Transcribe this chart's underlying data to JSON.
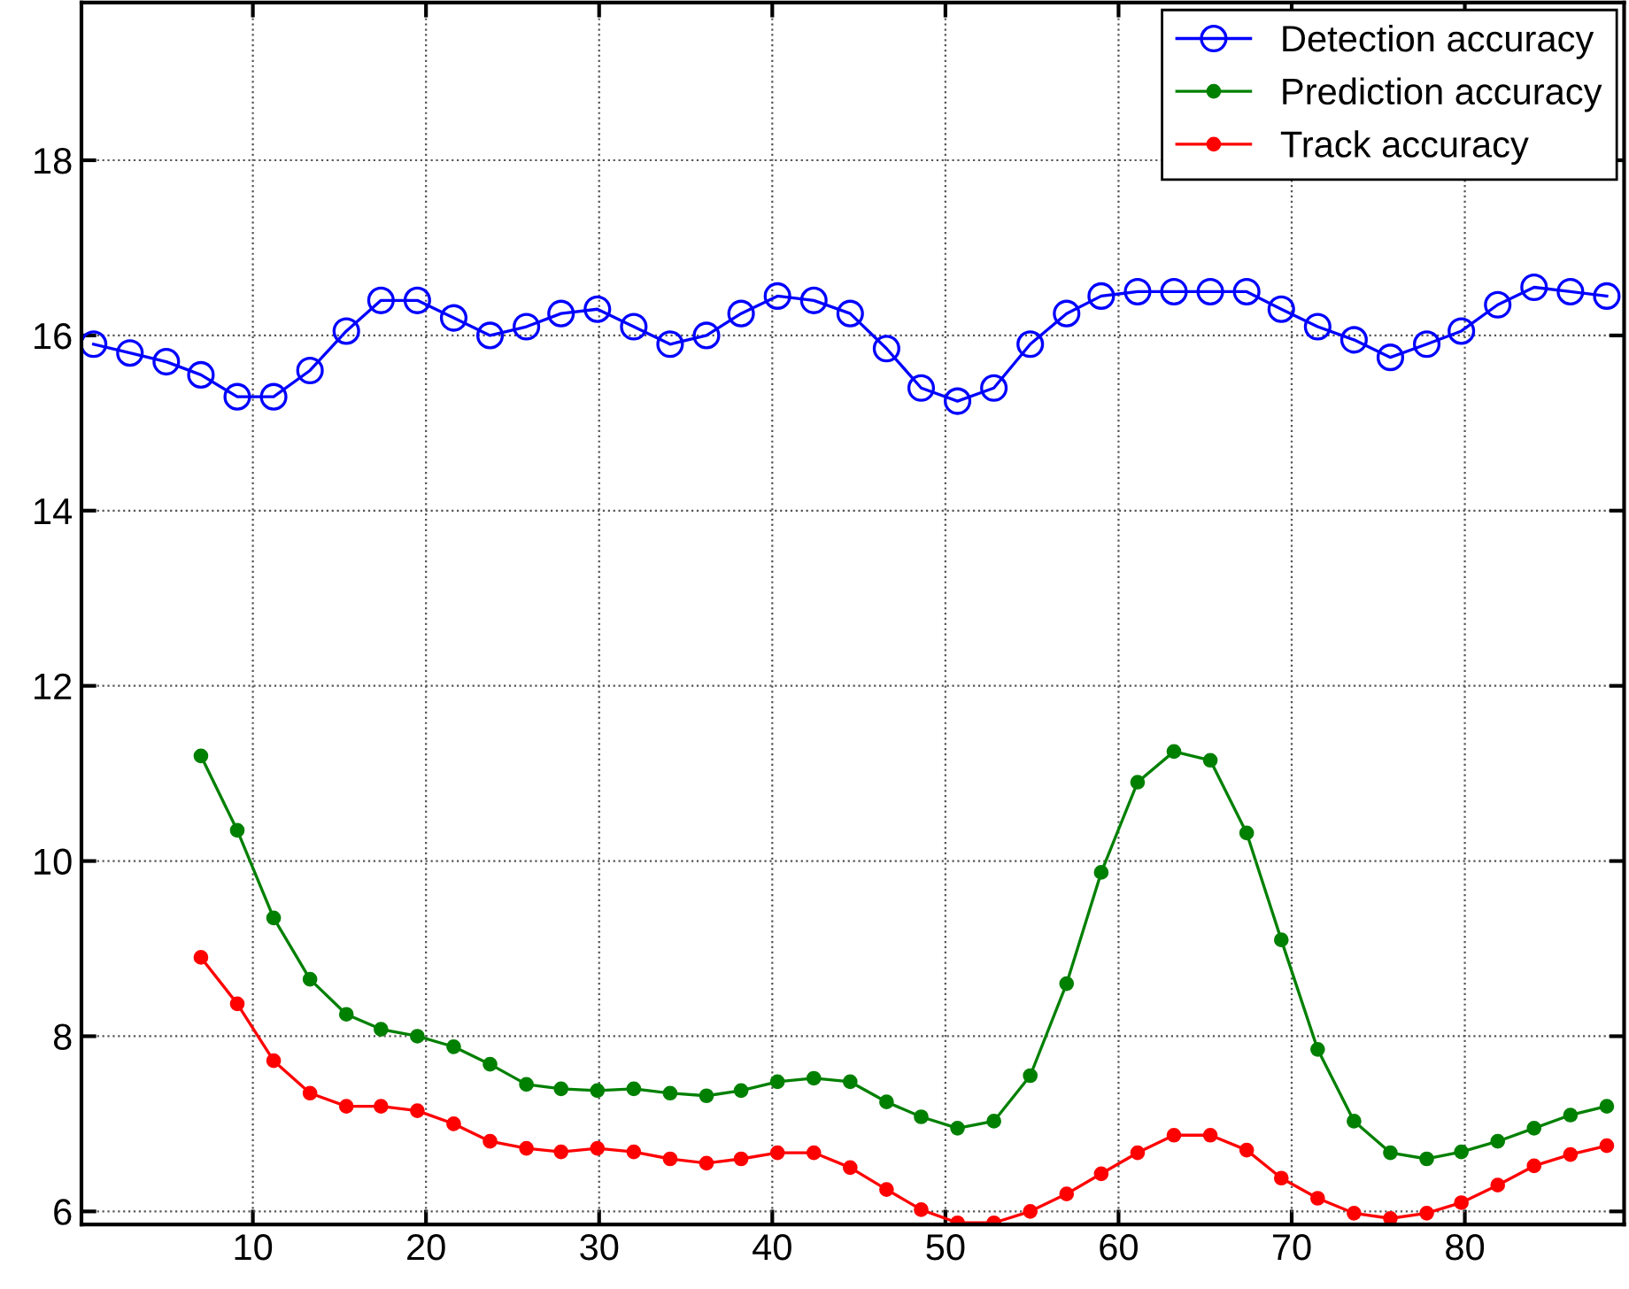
{
  "chart_data": {
    "type": "line",
    "xlim": [
      0.1,
      89.2
    ],
    "ylim": [
      5.85,
      19.8
    ],
    "xticks": [
      10,
      20,
      30,
      40,
      50,
      60,
      70,
      80
    ],
    "yticks": [
      6,
      8,
      10,
      12,
      14,
      16,
      18
    ],
    "grid": true,
    "legend": "top right",
    "marker": "circle",
    "line_style": "solid",
    "series": [
      {
        "name": "Detection accuracy",
        "color": "#0000ff",
        "x": [
          0.8,
          2.9,
          5.0,
          7.0,
          9.1,
          11.2,
          13.3,
          15.4,
          17.4,
          19.5,
          21.6,
          23.7,
          25.8,
          27.8,
          29.9,
          32.0,
          34.1,
          36.2,
          38.2,
          40.3,
          42.4,
          44.5,
          46.6,
          48.6,
          50.7,
          52.8,
          54.9,
          57.0,
          59.0,
          61.1,
          63.2,
          65.3,
          67.4,
          69.4,
          71.5,
          73.6,
          75.7,
          77.8,
          79.8,
          81.9,
          84.0,
          86.1,
          88.2
        ],
        "values": [
          15.9,
          15.8,
          15.7,
          15.55,
          15.3,
          15.3,
          15.6,
          16.05,
          16.4,
          16.4,
          16.2,
          16.0,
          16.1,
          16.25,
          16.3,
          16.1,
          15.9,
          16.0,
          16.25,
          16.45,
          16.4,
          16.25,
          15.85,
          15.4,
          15.25,
          15.4,
          15.9,
          16.25,
          16.45,
          16.5,
          16.5,
          16.5,
          16.5,
          16.3,
          16.1,
          15.95,
          15.75,
          15.9,
          16.05,
          16.35,
          16.55,
          16.5,
          16.45
        ]
      },
      {
        "name": "Prediction accuracy",
        "color": "#008000",
        "x": [
          7.0,
          9.1,
          11.2,
          13.3,
          15.4,
          17.4,
          19.5,
          21.6,
          23.7,
          25.8,
          27.8,
          29.9,
          32.0,
          34.1,
          36.2,
          38.2,
          40.3,
          42.4,
          44.5,
          46.6,
          48.6,
          50.7,
          52.8,
          54.9,
          57.0,
          59.0,
          61.1,
          63.2,
          65.3,
          67.4,
          69.4,
          71.5,
          73.6,
          75.7,
          77.8,
          79.8,
          81.9,
          84.0,
          86.1,
          88.2
        ],
        "values": [
          11.2,
          10.35,
          9.35,
          8.65,
          8.25,
          8.08,
          8.0,
          7.88,
          7.68,
          7.45,
          7.4,
          7.38,
          7.4,
          7.35,
          7.32,
          7.38,
          7.48,
          7.52,
          7.48,
          7.25,
          7.08,
          6.95,
          7.03,
          7.55,
          8.6,
          9.87,
          10.9,
          11.25,
          11.15,
          10.32,
          9.1,
          7.85,
          7.03,
          6.67,
          6.6,
          6.68,
          6.8,
          6.95,
          7.1,
          7.2
        ]
      },
      {
        "name": "Track accuracy",
        "color": "#ff0000",
        "x": [
          7.0,
          9.1,
          11.2,
          13.3,
          15.4,
          17.4,
          19.5,
          21.6,
          23.7,
          25.8,
          27.8,
          29.9,
          32.0,
          34.1,
          36.2,
          38.2,
          40.3,
          42.4,
          44.5,
          46.6,
          48.6,
          50.7,
          52.8,
          54.9,
          57.0,
          59.0,
          61.1,
          63.2,
          65.3,
          67.4,
          69.4,
          71.5,
          73.6,
          75.7,
          77.8,
          79.8,
          81.9,
          84.0,
          86.1,
          88.2
        ],
        "values": [
          8.9,
          8.37,
          7.72,
          7.35,
          7.2,
          7.2,
          7.15,
          7.0,
          6.8,
          6.72,
          6.68,
          6.72,
          6.68,
          6.6,
          6.55,
          6.6,
          6.67,
          6.67,
          6.5,
          6.25,
          6.02,
          5.87,
          5.87,
          6.0,
          6.2,
          6.43,
          6.67,
          6.87,
          6.87,
          6.7,
          6.38,
          6.15,
          5.98,
          5.92,
          5.98,
          6.1,
          6.3,
          6.52,
          6.65,
          6.75
        ]
      }
    ]
  }
}
